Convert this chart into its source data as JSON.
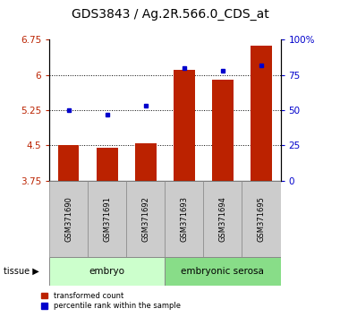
{
  "title": "GDS3843 / Ag.2R.566.0_CDS_at",
  "samples": [
    "GSM371690",
    "GSM371691",
    "GSM371692",
    "GSM371693",
    "GSM371694",
    "GSM371695"
  ],
  "bar_values": [
    4.5,
    4.45,
    4.55,
    6.1,
    5.9,
    6.62
  ],
  "percentile_values": [
    50,
    47,
    53,
    80,
    78,
    82
  ],
  "bar_color": "#bb2200",
  "dot_color": "#0000cc",
  "ylim_left": [
    3.75,
    6.75
  ],
  "ylim_right": [
    0,
    100
  ],
  "yticks_left": [
    3.75,
    4.5,
    5.25,
    6.0,
    6.75
  ],
  "yticks_right": [
    0,
    25,
    50,
    75,
    100
  ],
  "ytick_labels_left": [
    "3.75",
    "4.5",
    "5.25",
    "6",
    "6.75"
  ],
  "ytick_labels_right": [
    "0",
    "25",
    "50",
    "75",
    "100%"
  ],
  "grid_lines": [
    4.5,
    5.25,
    6.0
  ],
  "tissue_groups": [
    {
      "label": "embryo",
      "samples": [
        0,
        1,
        2
      ],
      "color": "#ccffcc"
    },
    {
      "label": "embryonic serosa",
      "samples": [
        3,
        4,
        5
      ],
      "color": "#88dd88"
    }
  ],
  "legend": [
    {
      "label": "transformed count",
      "color": "#bb2200"
    },
    {
      "label": "percentile rank within the sample",
      "color": "#0000cc"
    }
  ],
  "bar_width": 0.55,
  "title_fontsize": 10,
  "tick_fontsize": 7.5,
  "bg_xlabels": "#cccccc"
}
